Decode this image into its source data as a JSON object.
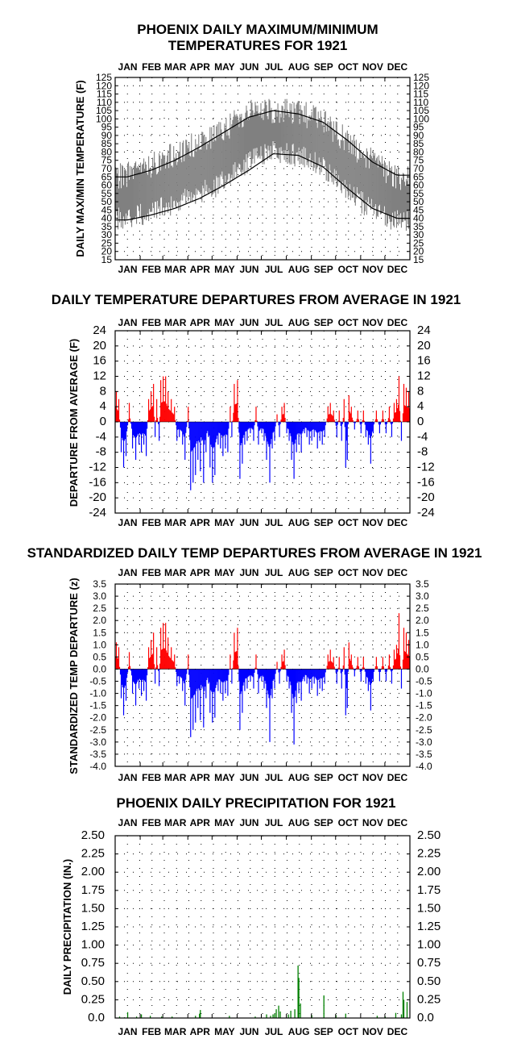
{
  "months": [
    "JAN",
    "FEB",
    "MAR",
    "APR",
    "MAY",
    "JUN",
    "JUL",
    "AUG",
    "SEP",
    "OCT",
    "NOV",
    "DEC"
  ],
  "colors": {
    "warm": "#ff0000",
    "cold": "#0000ff",
    "range": "#808080",
    "precip": "#008000",
    "normal": "#000000"
  },
  "chart_data": [
    {
      "type": "area",
      "title_line1": "PHOENIX DAILY MAXIMUM/MINIMUM",
      "title_line2": "TEMPERATURES FOR 1921",
      "ylabel": "DAILY MAX/MIN TEMPERATURE (F)",
      "ylim": [
        15,
        125
      ],
      "yticks": [
        125,
        120,
        115,
        110,
        105,
        100,
        95,
        90,
        85,
        80,
        75,
        70,
        65,
        60,
        55,
        50,
        45,
        40,
        35,
        30,
        25,
        20,
        15
      ],
      "x": "day of year 1-365",
      "series": [
        {
          "name": "",
          "kind": "daily max/min range band",
          "color": "#808080",
          "monthly_mean_max": [
            66,
            72,
            79,
            86,
            94,
            104,
            105,
            104,
            99,
            86,
            74,
            64
          ],
          "monthly_mean_min": [
            40,
            44,
            48,
            55,
            62,
            74,
            80,
            78,
            71,
            56,
            45,
            38
          ]
        },
        {
          "name": "",
          "kind": "normal max",
          "monthly_values": [
            65,
            69,
            75,
            83,
            92,
            101,
            105,
            103,
            98,
            87,
            74,
            66
          ]
        },
        {
          "name": "",
          "kind": "normal min",
          "monthly_values": [
            39,
            42,
            46,
            52,
            60,
            69,
            79,
            78,
            71,
            58,
            46,
            40
          ]
        }
      ]
    },
    {
      "type": "bar",
      "title": "DAILY TEMPERATURE DEPARTURES FROM AVERAGE IN 1921",
      "ylabel": "DEPARTURE FROM AVERAGE (F)",
      "ylim": [
        -24,
        24
      ],
      "yticks": [
        "24",
        "20",
        "16",
        "12",
        "8",
        "4",
        "0",
        "-4",
        "-8",
        "-12",
        "-16",
        "-20",
        "-24"
      ],
      "spikes": [
        [
          2,
          8
        ],
        [
          5,
          6
        ],
        [
          8,
          -8
        ],
        [
          11,
          -12
        ],
        [
          14,
          -9
        ],
        [
          18,
          5
        ],
        [
          22,
          -7
        ],
        [
          26,
          -10
        ],
        [
          30,
          -6
        ],
        [
          33,
          -8
        ],
        [
          36,
          -6
        ],
        [
          39,
          -9
        ],
        [
          42,
          6
        ],
        [
          45,
          8
        ],
        [
          48,
          10
        ],
        [
          50,
          -4
        ],
        [
          52,
          6
        ],
        [
          55,
          -5
        ],
        [
          57,
          11
        ],
        [
          60,
          12
        ],
        [
          63,
          12
        ],
        [
          66,
          8
        ],
        [
          70,
          6
        ],
        [
          74,
          4
        ],
        [
          77,
          -5
        ],
        [
          80,
          -4
        ],
        [
          84,
          -6
        ],
        [
          87,
          -10
        ],
        [
          91,
          4
        ],
        [
          94,
          -18
        ],
        [
          97,
          -16
        ],
        [
          100,
          -14
        ],
        [
          103,
          -10
        ],
        [
          106,
          -13
        ],
        [
          108,
          -5
        ],
        [
          110,
          -16
        ],
        [
          113,
          -8
        ],
        [
          116,
          -4
        ],
        [
          118,
          -12
        ],
        [
          121,
          -16
        ],
        [
          124,
          -14
        ],
        [
          128,
          -6
        ],
        [
          131,
          -7
        ],
        [
          134,
          -9
        ],
        [
          137,
          -7
        ],
        [
          140,
          -8
        ],
        [
          143,
          4
        ],
        [
          145,
          -4
        ],
        [
          148,
          10
        ],
        [
          152,
          11
        ],
        [
          155,
          -15
        ],
        [
          158,
          -11
        ],
        [
          161,
          -6
        ],
        [
          164,
          -5
        ],
        [
          168,
          -3
        ],
        [
          172,
          -5
        ],
        [
          175,
          4
        ],
        [
          178,
          -6
        ],
        [
          182,
          -3
        ],
        [
          185,
          -5
        ],
        [
          188,
          -10
        ],
        [
          192,
          -16
        ],
        [
          195,
          -7
        ],
        [
          198,
          -5
        ],
        [
          201,
          2
        ],
        [
          204,
          -4
        ],
        [
          207,
          4
        ],
        [
          210,
          5
        ],
        [
          213,
          -3
        ],
        [
          216,
          -5
        ],
        [
          219,
          -10
        ],
        [
          222,
          -15
        ],
        [
          225,
          -8
        ],
        [
          228,
          -6
        ],
        [
          231,
          -8
        ],
        [
          235,
          -3
        ],
        [
          238,
          -4
        ],
        [
          241,
          -6
        ],
        [
          244,
          -5
        ],
        [
          247,
          -4
        ],
        [
          251,
          -7
        ],
        [
          254,
          -5
        ],
        [
          257,
          -6
        ],
        [
          260,
          -4
        ],
        [
          264,
          4
        ],
        [
          267,
          5
        ],
        [
          271,
          3
        ],
        [
          275,
          -4
        ],
        [
          278,
          3
        ],
        [
          281,
          -5
        ],
        [
          284,
          6
        ],
        [
          286,
          -12
        ],
        [
          288,
          -10
        ],
        [
          290,
          7
        ],
        [
          293,
          4
        ],
        [
          297,
          -2
        ],
        [
          301,
          3
        ],
        [
          305,
          -3
        ],
        [
          308,
          3
        ],
        [
          311,
          -4
        ],
        [
          314,
          -6
        ],
        [
          317,
          -11
        ],
        [
          320,
          -3
        ],
        [
          324,
          3
        ],
        [
          328,
          -3
        ],
        [
          332,
          3
        ],
        [
          336,
          -3
        ],
        [
          340,
          4
        ],
        [
          343,
          -4
        ],
        [
          346,
          5
        ],
        [
          349,
          6
        ],
        [
          352,
          12
        ],
        [
          355,
          -5
        ],
        [
          358,
          10
        ],
        [
          361,
          9
        ],
        [
          364,
          8
        ]
      ]
    },
    {
      "type": "bar",
      "title": "STANDARDIZED DAILY TEMP DEPARTURES FROM AVERAGE IN 1921",
      "ylabel": "STANDARDIZED TEMP DEPARTURE (z)",
      "ylim": [
        -4.0,
        3.5
      ],
      "yticks": [
        "3.5",
        "3.0",
        "2.5",
        "2.0",
        "1.5",
        "1.0",
        "0.5",
        "0.0",
        "-0.5",
        "-1.0",
        "-1.5",
        "-2.0",
        "-2.5",
        "-3.0",
        "-3.5",
        "-4.0"
      ],
      "spikes": [
        [
          2,
          1.1
        ],
        [
          5,
          0.9
        ],
        [
          8,
          -1.2
        ],
        [
          11,
          -1.9
        ],
        [
          14,
          -1.3
        ],
        [
          18,
          0.7
        ],
        [
          22,
          -1.0
        ],
        [
          26,
          -1.5
        ],
        [
          30,
          -0.8
        ],
        [
          33,
          -1.1
        ],
        [
          36,
          -0.9
        ],
        [
          39,
          -1.3
        ],
        [
          42,
          0.9
        ],
        [
          45,
          1.2
        ],
        [
          48,
          1.5
        ],
        [
          50,
          -0.6
        ],
        [
          52,
          0.9
        ],
        [
          55,
          -0.7
        ],
        [
          57,
          1.7
        ],
        [
          60,
          1.9
        ],
        [
          63,
          1.9
        ],
        [
          66,
          1.3
        ],
        [
          70,
          0.9
        ],
        [
          74,
          0.6
        ],
        [
          77,
          -0.7
        ],
        [
          80,
          -0.6
        ],
        [
          84,
          -0.9
        ],
        [
          87,
          -1.5
        ],
        [
          91,
          0.6
        ],
        [
          94,
          -2.8
        ],
        [
          97,
          -2.5
        ],
        [
          100,
          -2.2
        ],
        [
          103,
          -1.6
        ],
        [
          106,
          -2.1
        ],
        [
          108,
          -0.8
        ],
        [
          110,
          -2.4
        ],
        [
          113,
          -1.2
        ],
        [
          116,
          -0.6
        ],
        [
          118,
          -1.8
        ],
        [
          121,
          -2.2
        ],
        [
          124,
          -2.0
        ],
        [
          128,
          -0.9
        ],
        [
          131,
          -1.0
        ],
        [
          134,
          -1.3
        ],
        [
          137,
          -1.0
        ],
        [
          140,
          -1.1
        ],
        [
          143,
          0.6
        ],
        [
          145,
          -0.6
        ],
        [
          148,
          1.5
        ],
        [
          152,
          1.7
        ],
        [
          155,
          -2.5
        ],
        [
          158,
          -1.8
        ],
        [
          161,
          -0.9
        ],
        [
          164,
          -0.8
        ],
        [
          168,
          -0.5
        ],
        [
          172,
          -0.8
        ],
        [
          175,
          0.6
        ],
        [
          178,
          -1.0
        ],
        [
          182,
          -0.5
        ],
        [
          185,
          -0.8
        ],
        [
          188,
          -1.6
        ],
        [
          192,
          -3.0
        ],
        [
          195,
          -1.2
        ],
        [
          198,
          -0.8
        ],
        [
          201,
          0.3
        ],
        [
          204,
          -0.6
        ],
        [
          207,
          0.6
        ],
        [
          210,
          0.8
        ],
        [
          213,
          -0.5
        ],
        [
          216,
          -0.8
        ],
        [
          219,
          -1.8
        ],
        [
          222,
          -3.1
        ],
        [
          225,
          -1.4
        ],
        [
          228,
          -1.0
        ],
        [
          231,
          -1.3
        ],
        [
          235,
          -0.5
        ],
        [
          238,
          -0.6
        ],
        [
          241,
          -1.0
        ],
        [
          244,
          -0.8
        ],
        [
          247,
          -0.6
        ],
        [
          251,
          -1.1
        ],
        [
          254,
          -0.8
        ],
        [
          257,
          -0.9
        ],
        [
          260,
          -0.6
        ],
        [
          264,
          0.6
        ],
        [
          267,
          0.8
        ],
        [
          271,
          0.5
        ],
        [
          275,
          -0.6
        ],
        [
          278,
          0.5
        ],
        [
          281,
          -0.8
        ],
        [
          284,
          0.9
        ],
        [
          286,
          -1.9
        ],
        [
          288,
          -1.6
        ],
        [
          290,
          1.1
        ],
        [
          293,
          0.6
        ],
        [
          297,
          -0.3
        ],
        [
          301,
          0.5
        ],
        [
          305,
          -0.5
        ],
        [
          308,
          0.5
        ],
        [
          311,
          -0.6
        ],
        [
          314,
          -0.9
        ],
        [
          317,
          -1.7
        ],
        [
          320,
          -0.5
        ],
        [
          324,
          0.5
        ],
        [
          328,
          -0.5
        ],
        [
          332,
          0.5
        ],
        [
          336,
          -0.5
        ],
        [
          340,
          0.6
        ],
        [
          343,
          -0.6
        ],
        [
          346,
          0.8
        ],
        [
          349,
          1.0
        ],
        [
          352,
          2.3
        ],
        [
          355,
          -0.8
        ],
        [
          358,
          1.7
        ],
        [
          361,
          1.5
        ],
        [
          364,
          1.2
        ]
      ]
    },
    {
      "type": "bar",
      "title": "PHOENIX DAILY PRECIPITATION FOR 1921",
      "ylabel": "DAILY PRECIPITATION (IN.)",
      "ylim": [
        0,
        2.5
      ],
      "yticks": [
        "2.50",
        "2.25",
        "2.00",
        "1.75",
        "1.50",
        "1.25",
        "1.00",
        "0.75",
        "0.50",
        "0.25",
        "0.0"
      ],
      "spikes": [
        [
          6,
          0.02
        ],
        [
          12,
          0.01
        ],
        [
          16,
          0.08
        ],
        [
          27,
          0.02
        ],
        [
          33,
          0.05
        ],
        [
          44,
          0.03
        ],
        [
          58,
          0.02
        ],
        [
          71,
          0.02
        ],
        [
          100,
          0.03
        ],
        [
          105,
          0.06
        ],
        [
          106,
          0.11
        ],
        [
          142,
          0.03
        ],
        [
          174,
          0.02
        ],
        [
          188,
          0.05
        ],
        [
          193,
          0.03
        ],
        [
          196,
          0.05
        ],
        [
          198,
          0.06
        ],
        [
          200,
          0.12
        ],
        [
          203,
          0.17
        ],
        [
          205,
          0.09
        ],
        [
          215,
          0.05
        ],
        [
          218,
          0.1
        ],
        [
          223,
          0.12
        ],
        [
          227,
          0.72
        ],
        [
          228,
          0.55
        ],
        [
          230,
          0.2
        ],
        [
          244,
          0.04
        ],
        [
          259,
          0.31
        ],
        [
          274,
          0.04
        ],
        [
          286,
          0.06
        ],
        [
          325,
          0.03
        ],
        [
          335,
          0.02
        ],
        [
          348,
          0.07
        ],
        [
          355,
          0.05
        ],
        [
          357,
          0.36
        ],
        [
          358,
          0.25
        ],
        [
          362,
          0.22
        ]
      ]
    }
  ]
}
